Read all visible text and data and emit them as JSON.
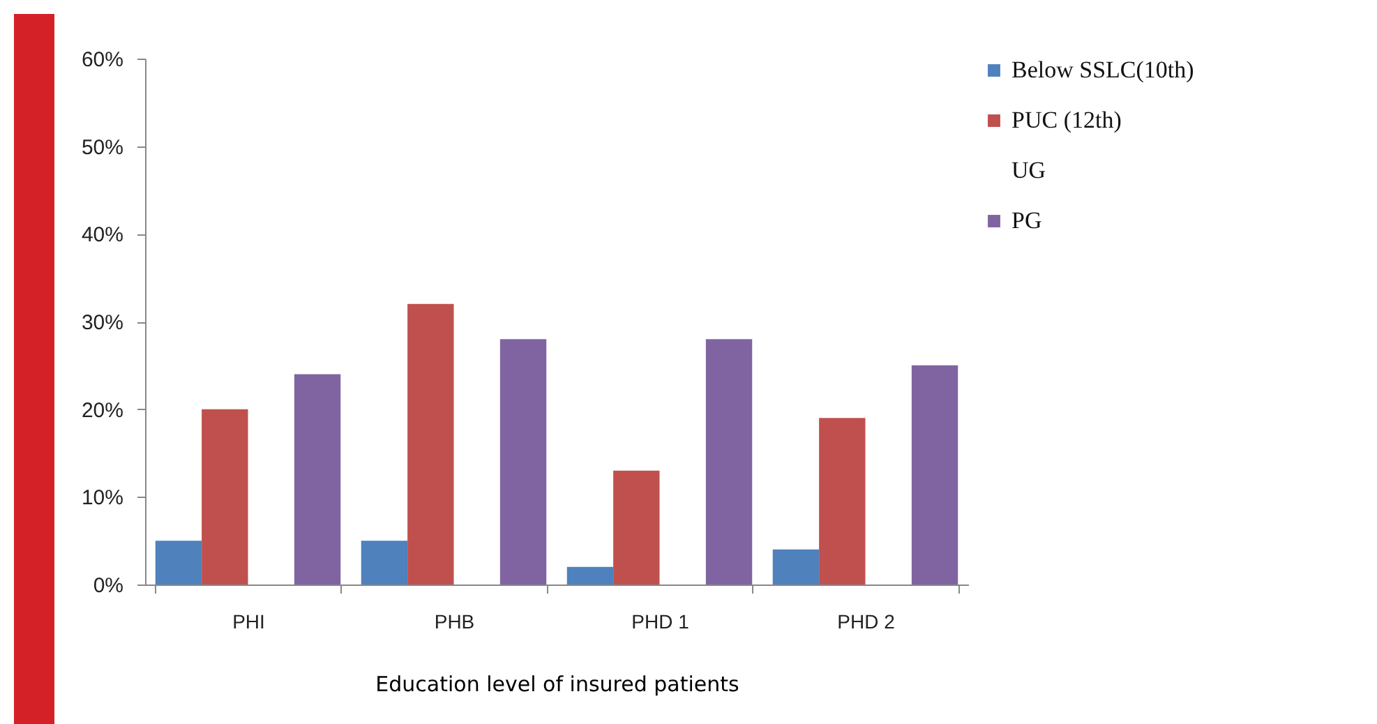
{
  "chart_data": {
    "type": "bar",
    "xlabel": "Education level of insured  patients",
    "categories": [
      "PHI",
      "PHB",
      "PHD 1",
      "PHD 2"
    ],
    "series": [
      {
        "name": "Below SSLC(10th)",
        "color": "#4f81bd",
        "values": [
          5,
          5,
          2,
          4
        ]
      },
      {
        "name": "PUC  (12th)",
        "color": "#c0504d",
        "values": [
          20,
          32,
          13,
          19
        ]
      },
      {
        "name": "UG",
        "values": [
          null,
          null,
          null,
          null
        ]
      },
      {
        "name": "PG",
        "color": "#8064a2",
        "values": [
          24,
          28,
          28,
          25
        ]
      }
    ],
    "ylim": [
      0,
      60
    ],
    "yticks": [
      {
        "value": 0,
        "label": "0%"
      },
      {
        "value": 10,
        "label": "10%"
      },
      {
        "value": 20,
        "label": "20%"
      },
      {
        "value": 30,
        "label": "30%"
      },
      {
        "value": 40,
        "label": "40%"
      },
      {
        "value": 50,
        "label": "50%"
      },
      {
        "value": 60,
        "label": "60%"
      }
    ],
    "grid": false,
    "legend": "right"
  }
}
